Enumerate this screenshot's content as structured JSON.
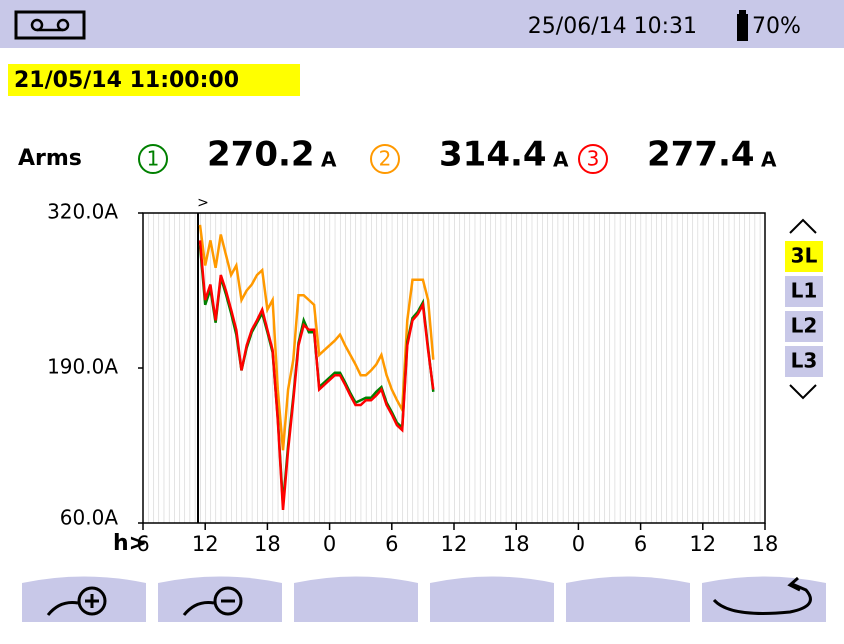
{
  "header": {
    "date_time": "25/06/14 10:31",
    "battery": "70%"
  },
  "timestamp": "21/05/14 11:00:00",
  "measure_label": "Arms",
  "readings": [
    {
      "value": 270.2,
      "unit": "A"
    },
    {
      "value": 314.4,
      "unit": "A"
    },
    {
      "value": 277.4,
      "unit": "A"
    }
  ],
  "cursor_marker": ">",
  "side_buttons": [
    "3L",
    "L1",
    "L2",
    "L3"
  ],
  "chart_data": {
    "type": "line",
    "x_label": "h>",
    "xlim": [
      6,
      66
    ],
    "xticks": [
      6,
      12,
      18,
      {
        "value": 24,
        "label": "0"
      },
      {
        "value": 30,
        "label": "6"
      },
      {
        "value": 36,
        "label": "12"
      },
      {
        "value": 42,
        "label": "18"
      },
      {
        "value": 48,
        "label": "0"
      },
      {
        "value": 54,
        "label": "6"
      },
      {
        "value": 60,
        "label": "12"
      },
      {
        "value": 66,
        "label": "18"
      }
    ],
    "ylim": [
      60,
      320
    ],
    "yticks": [
      {
        "value": 320,
        "label": "320.0A"
      },
      {
        "value": 190,
        "label": "190.0A"
      },
      {
        "value": 60,
        "label": "60.0A"
      }
    ],
    "x": [
      11.5,
      12,
      12.5,
      13,
      13.5,
      14,
      14.5,
      15,
      15.5,
      16,
      16.5,
      17,
      17.5,
      18,
      18.5,
      19,
      19.5,
      20,
      20.5,
      21,
      21.5,
      22,
      22.5,
      23,
      23.5,
      24,
      24.5,
      25,
      25.5,
      26,
      26.5,
      27,
      27.5,
      28,
      28.5,
      29,
      29.5,
      30,
      30.5,
      31,
      31.5,
      32,
      32.5,
      33,
      33.5,
      34
    ],
    "series": [
      {
        "name": "2",
        "color": "#ff9900",
        "values": [
          310,
          276,
          297,
          274,
          302,
          285,
          268,
          276,
          247,
          255,
          260,
          268,
          272,
          239,
          247,
          172,
          121,
          172,
          197,
          251,
          251,
          247,
          243,
          201,
          205,
          209,
          213,
          218,
          209,
          201,
          193,
          184,
          184,
          188,
          193,
          201,
          184,
          172,
          163,
          155,
          230,
          264,
          264,
          264,
          247,
          197
        ]
      },
      {
        "name": "1",
        "color": "#008000",
        "values": [
          293,
          243,
          256,
          228,
          266,
          252,
          236,
          218,
          188,
          207,
          220,
          228,
          236,
          220,
          203,
          148,
          75,
          125,
          166,
          211,
          230,
          220,
          220,
          174,
          178,
          182,
          186,
          186,
          178,
          169,
          161,
          163,
          165,
          165,
          170,
          174,
          161,
          153,
          144,
          140,
          212,
          232,
          237,
          245,
          207,
          170
        ]
      },
      {
        "name": "3",
        "color": "#ff0000",
        "values": [
          297,
          247,
          260,
          230,
          268,
          255,
          239,
          222,
          188,
          209,
          222,
          230,
          239,
          222,
          205,
          146,
          71,
          121,
          163,
          209,
          226,
          222,
          222,
          172,
          176,
          180,
          184,
          184,
          176,
          167,
          159,
          159,
          163,
          163,
          167,
          172,
          159,
          151,
          142,
          138,
          209,
          230,
          235,
          243,
          205,
          172
        ]
      }
    ]
  }
}
